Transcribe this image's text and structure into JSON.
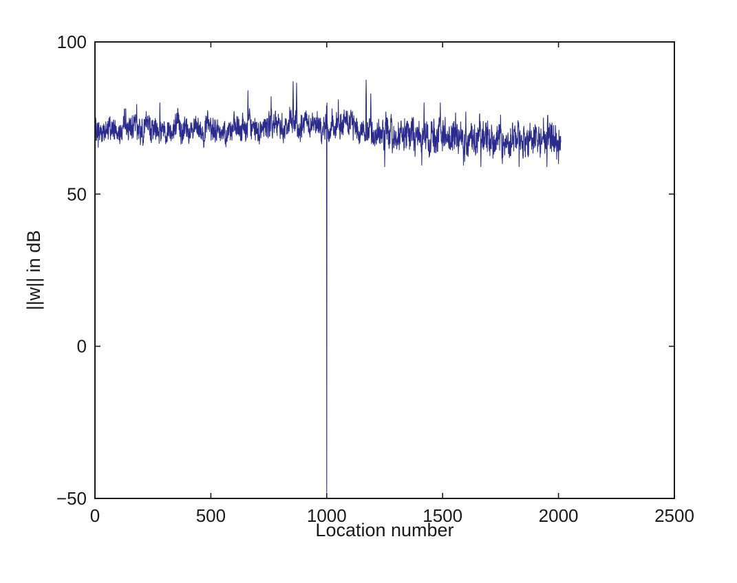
{
  "chart_data": {
    "type": "line",
    "title": "",
    "xlabel": "Location number",
    "ylabel": "||w|| in dB",
    "xlim": [
      0,
      2500
    ],
    "ylim": [
      -50,
      100
    ],
    "xticks": [
      0,
      500,
      1000,
      1500,
      2000,
      2500
    ],
    "yticks": [
      -50,
      0,
      50,
      100
    ],
    "xtick_labels": [
      "0",
      "500",
      "1000",
      "1500",
      "2000",
      "2500"
    ],
    "ytick_labels": [
      "−50",
      "0",
      "50",
      "100"
    ],
    "grid": false,
    "legend": "none",
    "line_color": "#2b2b8f",
    "series": [
      {
        "x_start": 0,
        "x_end": 2010,
        "points": 2011,
        "typical_range": [
          60,
          85
        ],
        "mean_envelope": [
          [
            0,
            70.5
          ],
          [
            200,
            72
          ],
          [
            400,
            71.5
          ],
          [
            600,
            71
          ],
          [
            800,
            72.5
          ],
          [
            1000,
            72
          ],
          [
            1100,
            73
          ],
          [
            1200,
            70
          ],
          [
            1400,
            69
          ],
          [
            1600,
            68.5
          ],
          [
            1800,
            68.5
          ],
          [
            2010,
            68
          ]
        ],
        "peaks": [
          [
            180,
            79.5
          ],
          [
            280,
            80
          ],
          [
            660,
            84
          ],
          [
            760,
            82
          ],
          [
            855,
            87
          ],
          [
            870,
            86.5
          ],
          [
            1000,
            85
          ],
          [
            1050,
            81
          ],
          [
            1170,
            87.5
          ],
          [
            1190,
            83
          ],
          [
            1420,
            80
          ],
          [
            1490,
            80
          ],
          [
            1600,
            77
          ],
          [
            1750,
            76
          ],
          [
            1935,
            75
          ]
        ],
        "troughs": [
          [
            1250,
            59
          ],
          [
            1410,
            59.5
          ],
          [
            1590,
            59.5
          ],
          [
            1665,
            59
          ],
          [
            1830,
            59
          ],
          [
            1950,
            59
          ],
          [
            2000,
            60
          ]
        ],
        "dip": {
          "x": 1000,
          "y": -48
        }
      }
    ]
  }
}
